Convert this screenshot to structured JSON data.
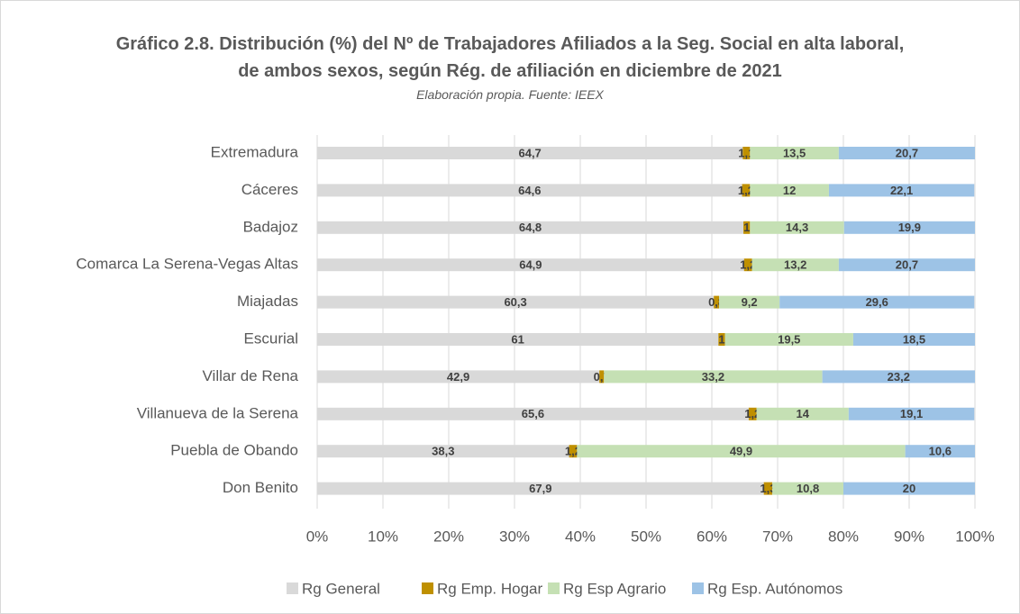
{
  "chart_data": {
    "type": "stacked-barh",
    "title": "Gráfico 2.8. Distribución (%) del  Nº de Trabajadores Afiliados a la Seg. Social en alta laboral, de ambos sexos, según Rég. de afiliación en diciembre de 2021",
    "subtitle": "Elaboración propia. Fuente: IEEX",
    "categories": [
      "Extremadura",
      "Cáceres",
      "Badajoz",
      "Comarca La Serena-Vegas Altas",
      "Miajadas",
      "Escurial",
      "Villar de Rena",
      "Villanueva de la Serena",
      "Puebla de Obando",
      "Don Benito"
    ],
    "series": [
      {
        "name": "Rg General",
        "color": "#d9d9d9",
        "values": [
          64.7,
          64.6,
          64.8,
          64.9,
          60.3,
          61,
          42.9,
          65.6,
          38.3,
          67.9
        ],
        "value_labels": [
          "64,7",
          "64,6",
          "64,8",
          "64,9",
          "60,3",
          "61",
          "42,9",
          "65,6",
          "38,3",
          "67,9"
        ]
      },
      {
        "name": "Rg Emp. Hogar",
        "color": "#bf9000",
        "values": [
          1.1,
          1.2,
          1,
          1.2,
          0.8,
          1,
          0.7,
          1.2,
          1.2,
          1.3
        ],
        "value_labels": [
          "1,1",
          "1,2",
          "1",
          "1,2",
          "0,8",
          "1",
          "0,7",
          "1,2",
          "1,2",
          "1,3"
        ]
      },
      {
        "name": "Rg Esp Agrario",
        "color": "#c5e0b4",
        "values": [
          13.5,
          12,
          14.3,
          13.2,
          9.2,
          19.5,
          33.2,
          14,
          49.9,
          10.8
        ],
        "value_labels": [
          "13,5",
          "12",
          "14,3",
          "13,2",
          "9,2",
          "19,5",
          "33,2",
          "14",
          "49,9",
          "10,8"
        ]
      },
      {
        "name": "Rg Esp. Autónomos",
        "color": "#9dc3e6",
        "values": [
          20.7,
          22.1,
          19.9,
          20.7,
          29.6,
          18.5,
          23.2,
          19.1,
          10.6,
          20
        ],
        "value_labels": [
          "20,7",
          "22,1",
          "19,9",
          "20,7",
          "29,6",
          "18,5",
          "23,2",
          "19,1",
          "10,6",
          "20"
        ]
      }
    ],
    "xlim": [
      0,
      100
    ],
    "xticks": [
      {
        "value": 0,
        "label": "0%"
      },
      {
        "value": 10,
        "label": "10%"
      },
      {
        "value": 20,
        "label": "20%"
      },
      {
        "value": 30,
        "label": "30%"
      },
      {
        "value": 40,
        "label": "40%"
      },
      {
        "value": 50,
        "label": "50%"
      },
      {
        "value": 60,
        "label": "60%"
      },
      {
        "value": 70,
        "label": "70%"
      },
      {
        "value": 80,
        "label": "80%"
      },
      {
        "value": 90,
        "label": "90%"
      },
      {
        "value": 100,
        "label": "100%"
      }
    ],
    "grid": true,
    "legend": "bottom"
  }
}
